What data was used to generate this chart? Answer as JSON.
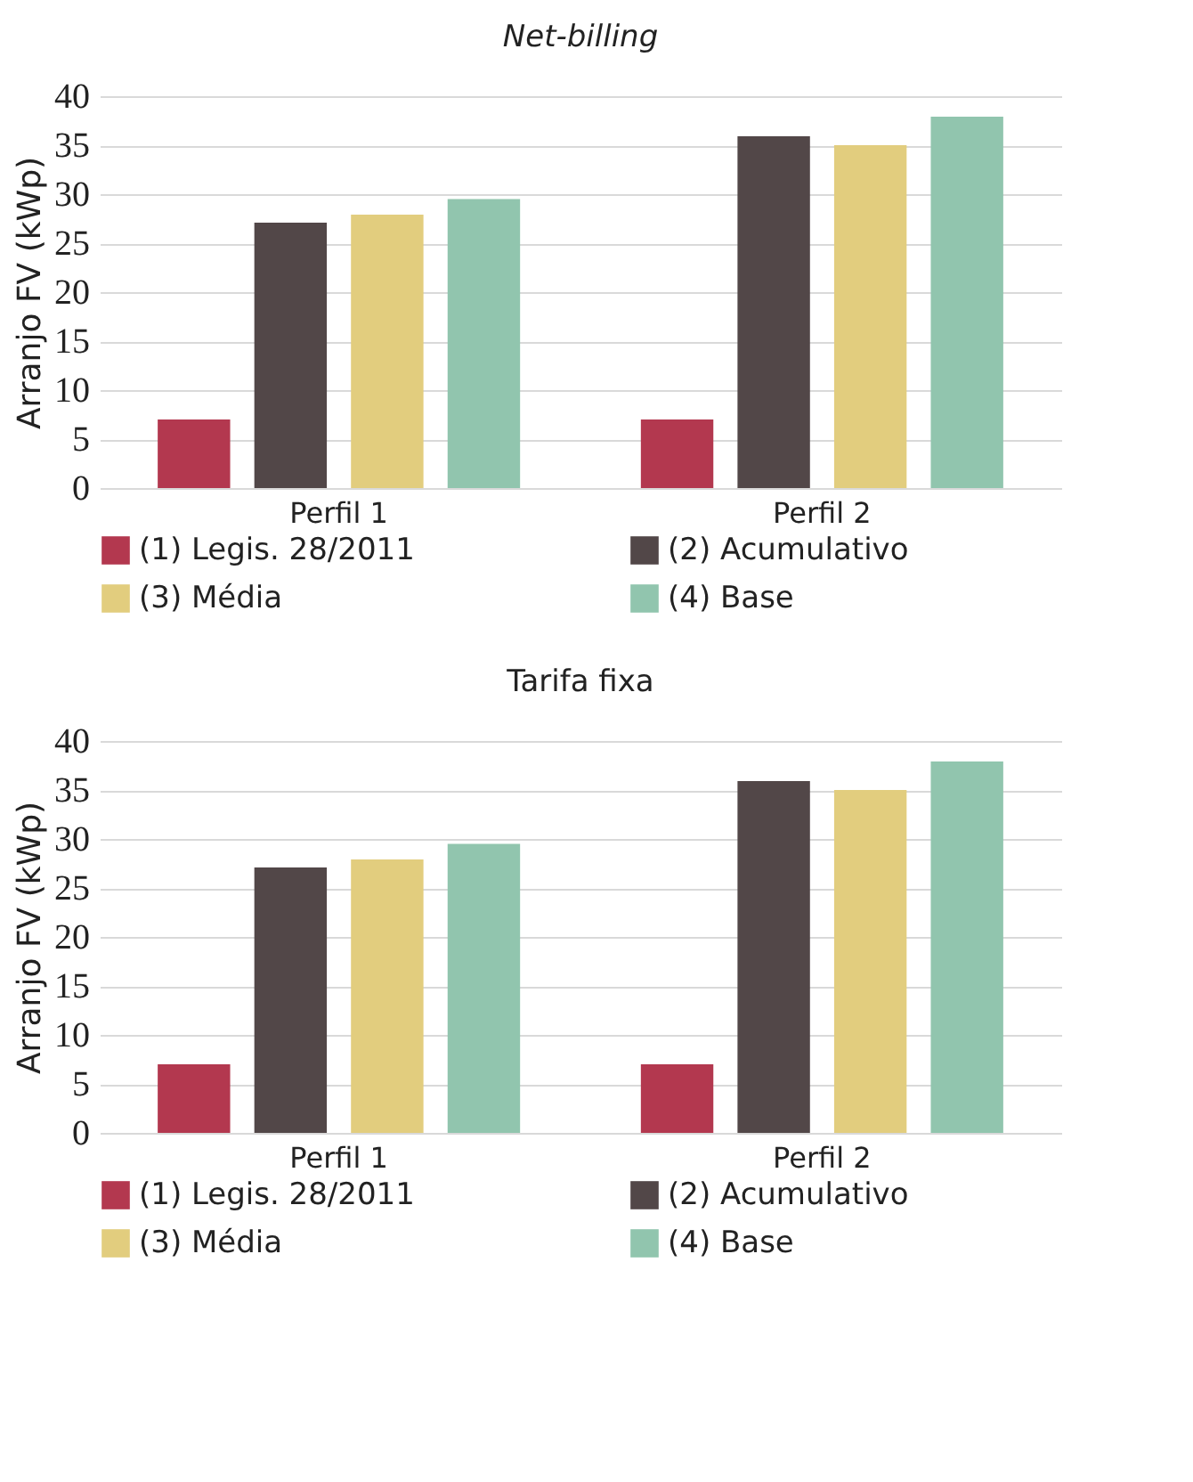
{
  "chart_data": [
    {
      "type": "bar",
      "title": "Net-billing",
      "ylabel": "Arranjo FV (kWp)",
      "categories": [
        "Perfil 1",
        "Perfil 2"
      ],
      "ylim": [
        0,
        40
      ],
      "yticks": [
        0,
        5,
        10,
        15,
        20,
        25,
        30,
        35,
        40
      ],
      "grid": "y",
      "legend": "bottom",
      "series": [
        {
          "name": "(1) Legis. 28/2011",
          "color": "#b3384f",
          "values": [
            7,
            7
          ]
        },
        {
          "name": "(2) Acumulativo",
          "color": "#524748",
          "values": [
            27.1,
            35.9
          ]
        },
        {
          "name": "(3) Média",
          "color": "#e2cd7e",
          "values": [
            27.9,
            35
          ]
        },
        {
          "name": "(4) Base",
          "color": "#91c5ae",
          "values": [
            29.5,
            37.9
          ]
        }
      ]
    },
    {
      "type": "bar",
      "title": "Tarifa fixa",
      "ylabel": "Arranjo FV (kWp)",
      "categories": [
        "Perfil 1",
        "Perfil 2"
      ],
      "ylim": [
        0,
        40
      ],
      "yticks": [
        0,
        5,
        10,
        15,
        20,
        25,
        30,
        35,
        40
      ],
      "grid": "y",
      "legend": "bottom",
      "series": [
        {
          "name": "(1) Legis. 28/2011",
          "color": "#b3384f",
          "values": [
            7,
            7
          ]
        },
        {
          "name": "(2) Acumulativo",
          "color": "#524748",
          "values": [
            27.1,
            35.9
          ]
        },
        {
          "name": "(3) Média",
          "color": "#e2cd7e",
          "values": [
            27.9,
            35
          ]
        },
        {
          "name": "(4) Base",
          "color": "#91c5ae",
          "values": [
            29.5,
            37.9
          ]
        }
      ]
    }
  ]
}
